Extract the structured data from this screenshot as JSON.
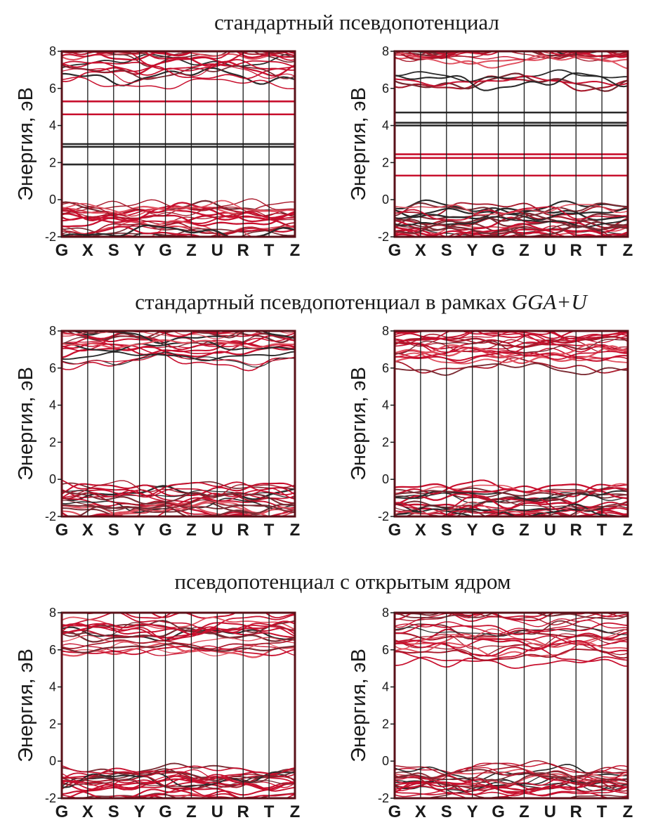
{
  "sections": [
    {
      "title": "стандартный псевдопотенциал"
    },
    {
      "title": "стандартный псевдопотенциал в рамках ",
      "title_italic": "GGA+U"
    },
    {
      "title": "псевдопотенциал с открытым ядром"
    }
  ],
  "colors": {
    "red": "#c8102e",
    "dark": "#2a2a2a",
    "frame": "#5a1018"
  },
  "chart_data": [
    {
      "type": "line",
      "title": "",
      "ylabel": "Энергия, эВ",
      "ylim": [
        -2,
        8
      ],
      "yticks": [
        "8",
        "6",
        "4",
        "2",
        "0",
        "-2"
      ],
      "x_labels": [
        "G",
        "X",
        "S",
        "Y",
        "G",
        "Z",
        "U",
        "R",
        "T",
        "Z"
      ],
      "bands": {
        "valence_top": 0.0,
        "conduction_bottom": 5.9
      },
      "flat_levels": [
        {
          "energy": 5.3,
          "color": "red"
        },
        {
          "energy": 4.6,
          "color": "red"
        },
        {
          "energy": 3.0,
          "color": "dark"
        },
        {
          "energy": 2.85,
          "color": "dark"
        },
        {
          "energy": 1.9,
          "color": "dark"
        }
      ]
    },
    {
      "type": "line",
      "title": "",
      "ylabel": "Энергия, эВ",
      "ylim": [
        -2,
        8
      ],
      "yticks": [
        "8",
        "6",
        "4",
        "2",
        "0",
        "-2"
      ],
      "x_labels": [
        "G",
        "X",
        "S",
        "Y",
        "G",
        "Z",
        "U",
        "R",
        "T",
        "Z"
      ],
      "bands": {
        "valence_top": -0.1,
        "conduction_bottom": 5.9
      },
      "flat_levels": [
        {
          "energy": 4.7,
          "color": "dark"
        },
        {
          "energy": 4.15,
          "color": "dark"
        },
        {
          "energy": 4.0,
          "color": "dark"
        },
        {
          "energy": 2.45,
          "color": "red"
        },
        {
          "energy": 2.25,
          "color": "red"
        },
        {
          "energy": 1.3,
          "color": "red"
        }
      ]
    },
    {
      "type": "line",
      "title": "",
      "ylabel": "Энергия, эВ",
      "ylim": [
        -2,
        8
      ],
      "yticks": [
        "8",
        "6",
        "4",
        "2",
        "0",
        "-2"
      ],
      "x_labels": [
        "G",
        "X",
        "S",
        "Y",
        "G",
        "Z",
        "U",
        "R",
        "T",
        "Z"
      ],
      "bands": {
        "valence_top": 0.0,
        "conduction_bottom": 5.6
      },
      "flat_levels": []
    },
    {
      "type": "line",
      "title": "",
      "ylabel": "Энергия, эВ",
      "ylim": [
        -2,
        8
      ],
      "yticks": [
        "8",
        "6",
        "4",
        "2",
        "0",
        "-2"
      ],
      "x_labels": [
        "G",
        "X",
        "S",
        "Y",
        "G",
        "Z",
        "U",
        "R",
        "T",
        "Z"
      ],
      "bands": {
        "valence_top": -0.1,
        "conduction_bottom": 5.6
      },
      "flat_levels": []
    },
    {
      "type": "line",
      "title": "",
      "ylabel": "Энергия, эВ",
      "ylim": [
        -2,
        8
      ],
      "yticks": [
        "8",
        "6",
        "4",
        "2",
        "0",
        "-2"
      ],
      "x_labels": [
        "G",
        "X",
        "S",
        "Y",
        "G",
        "Z",
        "U",
        "R",
        "T",
        "Z"
      ],
      "bands": {
        "valence_top": -0.1,
        "conduction_bottom": 5.6
      },
      "flat_levels": []
    },
    {
      "type": "line",
      "title": "",
      "ylabel": "Энергия, эВ",
      "ylim": [
        -2,
        8
      ],
      "yticks": [
        "8",
        "6",
        "4",
        "2",
        "0",
        "-2"
      ],
      "x_labels": [
        "G",
        "X",
        "S",
        "Y",
        "G",
        "Z",
        "U",
        "R",
        "T",
        "Z"
      ],
      "bands": {
        "valence_top": 0.0,
        "conduction_bottom": 4.9
      },
      "flat_levels": []
    }
  ]
}
